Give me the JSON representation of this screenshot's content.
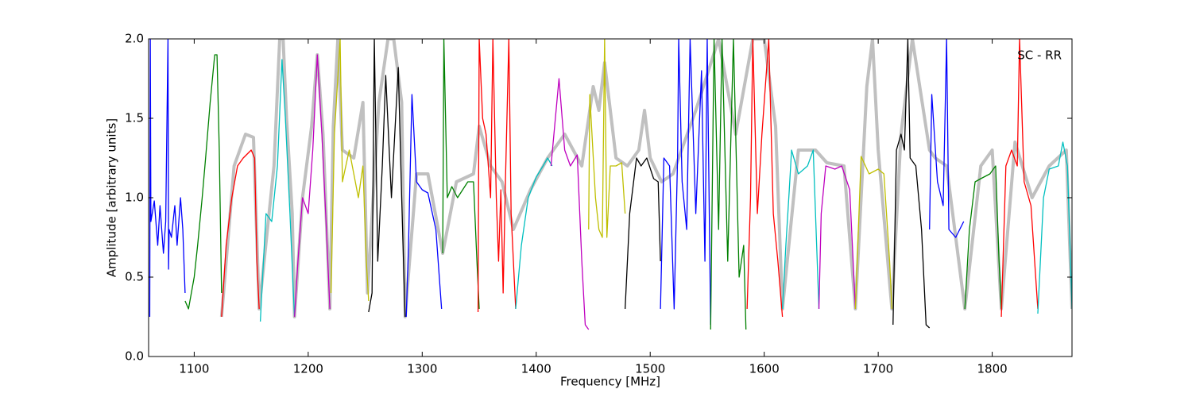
{
  "chart_data": {
    "type": "line",
    "x_label": "Frequency [MHz]",
    "y_label": "Amplitude [arbitrary units]",
    "annotation": "SC - RR",
    "xlim": [
      1060,
      1870
    ],
    "ylim": [
      0,
      2
    ],
    "xticks": [
      1100,
      1200,
      1300,
      1400,
      1500,
      1600,
      1700,
      1800
    ],
    "yticks": [
      {
        "value": 0,
        "label": "0.0"
      },
      {
        "value": 0.5,
        "label": "0.5"
      },
      {
        "value": 1,
        "label": "1.0"
      },
      {
        "value": 1.5,
        "label": "1.5"
      },
      {
        "value": 2,
        "label": "2.0"
      }
    ],
    "grid": false,
    "series": [
      {
        "color": "#c0c0c0",
        "x": [
          1124,
          1135,
          1145,
          1152,
          1157,
          1170,
          1175,
          1178,
          1181,
          1186,
          1188,
          1195,
          1203,
          1208,
          1213,
          1219,
          1222,
          1226,
          1230,
          1240,
          1248,
          1252,
          1262,
          1270,
          1275,
          1282,
          1285,
          1295,
          1305,
          1318,
          1330,
          1345,
          1350,
          1360,
          1370,
          1380,
          1395,
          1410,
          1425,
          1440,
          1450,
          1455,
          1460,
          1470,
          1480,
          1490,
          1495,
          1500,
          1510,
          1520,
          1540,
          1560,
          1575,
          1590,
          1600,
          1610,
          1616,
          1630,
          1645,
          1655,
          1670,
          1680,
          1690,
          1695,
          1700,
          1712,
          1720,
          1730,
          1745,
          1750,
          1760,
          1776,
          1790,
          1800,
          1808,
          1820,
          1835,
          1850,
          1865,
          1870
        ],
        "values": [
          0.25,
          1.2,
          1.4,
          1.38,
          0.3,
          1.2,
          2.0,
          2.0,
          1.5,
          0.9,
          0.25,
          1.0,
          1.45,
          1.9,
          1.4,
          0.3,
          1.45,
          2.0,
          1.3,
          1.25,
          1.6,
          0.4,
          1.6,
          2.0,
          2.0,
          1.6,
          0.25,
          1.15,
          1.15,
          0.65,
          1.1,
          1.15,
          1.45,
          1.2,
          1.1,
          0.8,
          1.05,
          1.25,
          1.4,
          1.2,
          1.7,
          1.55,
          1.85,
          1.25,
          1.2,
          1.3,
          1.55,
          1.25,
          1.1,
          1.15,
          1.55,
          2.0,
          1.4,
          2.0,
          2.0,
          1.45,
          0.3,
          1.3,
          1.3,
          1.22,
          1.2,
          0.3,
          1.7,
          2.0,
          1.3,
          0.3,
          1.4,
          2.0,
          1.3,
          1.25,
          1.2,
          0.3,
          1.2,
          1.3,
          0.3,
          1.35,
          1.0,
          1.2,
          1.3,
          0.3
        ]
      },
      {
        "color": "#0000ff",
        "x": [
          1061,
          1061.5,
          1062,
          1065,
          1068,
          1070,
          1073,
          1075,
          1077,
          1077.5,
          1078,
          1080,
          1083,
          1085,
          1088,
          1090,
          1092
        ],
        "values": [
          0.25,
          2.0,
          0.85,
          0.98,
          0.7,
          0.95,
          0.65,
          0.85,
          2.0,
          0.55,
          0.8,
          0.75,
          0.95,
          0.7,
          1.0,
          0.8,
          0.4
        ]
      },
      {
        "color": "#008000",
        "x": [
          1092,
          1095,
          1100,
          1103,
          1107,
          1110,
          1114,
          1118,
          1120,
          1122,
          1124
        ],
        "values": [
          0.35,
          0.3,
          0.5,
          0.7,
          1.0,
          1.25,
          1.6,
          1.9,
          1.9,
          1.3,
          0.4
        ]
      },
      {
        "color": "#ff0000",
        "x": [
          1124,
          1128,
          1133,
          1138,
          1143,
          1150,
          1153,
          1155,
          1157
        ],
        "values": [
          0.25,
          0.7,
          1.0,
          1.2,
          1.25,
          1.3,
          1.25,
          0.6,
          0.3
        ]
      },
      {
        "color": "#00bfbf",
        "x": [
          1158,
          1160,
          1163,
          1168,
          1173,
          1177,
          1180,
          1184,
          1187,
          1188
        ],
        "values": [
          0.22,
          0.5,
          0.9,
          0.85,
          1.2,
          1.87,
          1.5,
          0.9,
          0.4,
          0.25
        ]
      },
      {
        "color": "#bf00bf",
        "x": [
          1188,
          1191,
          1195,
          1200,
          1204,
          1208,
          1212,
          1216,
          1219
        ],
        "values": [
          0.25,
          0.6,
          1.0,
          0.9,
          1.3,
          1.9,
          1.4,
          0.8,
          0.3
        ]
      },
      {
        "color": "#bfbf00",
        "x": [
          1220,
          1223,
          1228,
          1230,
          1236,
          1244,
          1248,
          1251,
          1253
        ],
        "values": [
          0.4,
          1.4,
          2.0,
          1.1,
          1.3,
          1.0,
          1.2,
          0.6,
          0.35
        ]
      },
      {
        "color": "#000000",
        "x": [
          1253,
          1256,
          1258,
          1261,
          1265,
          1268,
          1273,
          1279,
          1282,
          1285
        ],
        "values": [
          0.28,
          0.4,
          2.0,
          0.6,
          1.2,
          1.77,
          1.0,
          1.82,
          1.0,
          0.25
        ]
      },
      {
        "color": "#0000ff",
        "x": [
          1286,
          1288,
          1291,
          1295,
          1300,
          1305,
          1312,
          1317
        ],
        "values": [
          0.25,
          0.7,
          1.65,
          1.1,
          1.05,
          1.03,
          0.8,
          0.3
        ]
      },
      {
        "color": "#008000",
        "x": [
          1318,
          1319,
          1322,
          1326,
          1331,
          1340,
          1345,
          1348,
          1350
        ],
        "values": [
          0.65,
          2.0,
          1.0,
          1.07,
          1.0,
          1.1,
          1.1,
          0.6,
          0.3
        ]
      },
      {
        "color": "#ff0000",
        "x": [
          1349,
          1350,
          1353,
          1356,
          1360,
          1362,
          1365,
          1367,
          1369,
          1371,
          1373,
          1376,
          1378,
          1380,
          1382
        ],
        "values": [
          0.28,
          2.0,
          1.5,
          1.4,
          1.0,
          2.0,
          1.0,
          0.6,
          1.05,
          0.4,
          1.1,
          2.0,
          0.9,
          0.6,
          0.3
        ]
      },
      {
        "color": "#00bfbf",
        "x": [
          1382,
          1387,
          1393,
          1400,
          1406,
          1410,
          1414
        ],
        "values": [
          0.3,
          0.7,
          1.0,
          1.13,
          1.2,
          1.25,
          1.2
        ]
      },
      {
        "color": "#bf00bf",
        "x": [
          1413,
          1420,
          1425,
          1430,
          1436,
          1440,
          1443,
          1446
        ],
        "values": [
          1.2,
          1.75,
          1.3,
          1.2,
          1.27,
          0.6,
          0.2,
          0.17
        ]
      },
      {
        "color": "#bfbf00",
        "x": [
          1446,
          1447,
          1452,
          1455,
          1458,
          1460,
          1462,
          1465,
          1470,
          1475,
          1478
        ],
        "values": [
          0.8,
          1.65,
          1.0,
          0.8,
          0.75,
          2.0,
          0.75,
          1.2,
          1.2,
          1.22,
          0.9
        ]
      },
      {
        "color": "#000000",
        "x": [
          1478,
          1482,
          1488,
          1492,
          1497,
          1503,
          1507,
          1509
        ],
        "values": [
          0.3,
          0.9,
          1.25,
          1.2,
          1.25,
          1.12,
          1.1,
          0.6
        ]
      },
      {
        "color": "#0000ff",
        "x": [
          1509,
          1512,
          1517,
          1521,
          1524,
          1525,
          1528,
          1532,
          1535,
          1540,
          1545,
          1548,
          1550,
          1553
        ],
        "values": [
          0.3,
          1.25,
          1.2,
          0.3,
          1.25,
          2.0,
          1.1,
          0.8,
          2.0,
          0.9,
          1.8,
          0.6,
          2.0,
          0.2
        ]
      },
      {
        "color": "#008000",
        "x": [
          1553,
          1556,
          1560,
          1563,
          1568,
          1573,
          1578,
          1582,
          1584
        ],
        "values": [
          0.17,
          2.0,
          0.8,
          2.0,
          0.6,
          2.0,
          0.5,
          0.7,
          0.17
        ]
      },
      {
        "color": "#ff0000",
        "x": [
          1585,
          1588,
          1590,
          1594,
          1598,
          1604,
          1608,
          1612,
          1616
        ],
        "values": [
          0.3,
          1.0,
          2.0,
          0.9,
          1.4,
          2.0,
          0.9,
          0.6,
          0.25
        ]
      },
      {
        "color": "#00bfbf",
        "x": [
          1616,
          1619,
          1622,
          1624,
          1630,
          1638,
          1643,
          1646,
          1648
        ],
        "values": [
          0.3,
          0.7,
          1.05,
          1.3,
          1.15,
          1.2,
          1.3,
          0.7,
          0.3
        ]
      },
      {
        "color": "#bf00bf",
        "x": [
          1648,
          1650,
          1654,
          1662,
          1668,
          1675,
          1680
        ],
        "values": [
          0.3,
          0.9,
          1.2,
          1.18,
          1.2,
          1.05,
          0.3
        ]
      },
      {
        "color": "#bfbf00",
        "x": [
          1680,
          1685,
          1692,
          1700,
          1705,
          1710,
          1712
        ],
        "values": [
          0.3,
          1.26,
          1.15,
          1.18,
          1.15,
          0.6,
          0.3
        ]
      },
      {
        "color": "#000000",
        "x": [
          1713,
          1716,
          1720,
          1723,
          1726,
          1728,
          1733,
          1738,
          1742,
          1745
        ],
        "values": [
          0.2,
          1.3,
          1.4,
          1.3,
          2.0,
          1.25,
          1.2,
          0.8,
          0.2,
          0.18
        ]
      },
      {
        "color": "#0000ff",
        "x": [
          1745,
          1747,
          1752,
          1757,
          1760,
          1762,
          1768,
          1775
        ],
        "values": [
          0.8,
          1.65,
          1.1,
          0.95,
          2.0,
          0.8,
          0.75,
          0.85
        ]
      },
      {
        "color": "#008000",
        "x": [
          1776,
          1780,
          1785,
          1790,
          1798,
          1803,
          1806,
          1808
        ],
        "values": [
          0.3,
          0.8,
          1.1,
          1.12,
          1.15,
          1.2,
          0.6,
          0.3
        ]
      },
      {
        "color": "#ff0000",
        "x": [
          1808,
          1812,
          1817,
          1822,
          1824,
          1828,
          1834,
          1840
        ],
        "values": [
          0.25,
          1.2,
          1.3,
          1.2,
          2.0,
          1.1,
          0.95,
          0.3
        ]
      },
      {
        "color": "#00bfbf",
        "x": [
          1840,
          1845,
          1850,
          1858,
          1862,
          1866,
          1870
        ],
        "values": [
          0.27,
          1.0,
          1.18,
          1.2,
          1.35,
          1.2,
          0.3
        ]
      }
    ]
  }
}
